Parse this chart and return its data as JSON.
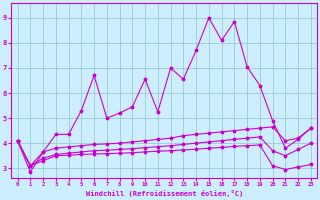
{
  "xlabel": "Windchill (Refroidissement éolien,°C)",
  "bg_color": "#cceeff",
  "line_color": "#cc00cc",
  "grid_color": "#99cccc",
  "xlim": [
    -0.5,
    23.5
  ],
  "ylim": [
    2.6,
    9.6
  ],
  "yticks": [
    3,
    4,
    5,
    6,
    7,
    8,
    9
  ],
  "xticks": [
    0,
    1,
    2,
    3,
    4,
    5,
    6,
    7,
    8,
    9,
    10,
    11,
    12,
    13,
    14,
    15,
    16,
    17,
    18,
    19,
    20,
    21,
    22,
    23
  ],
  "line1_y": [
    4.1,
    2.85,
    3.65,
    4.35,
    4.35,
    5.3,
    6.7,
    5.0,
    5.2,
    5.45,
    6.55,
    5.25,
    7.0,
    6.55,
    7.7,
    9.0,
    8.1,
    8.85,
    7.05,
    6.3,
    4.9,
    3.8,
    4.15,
    4.6
  ],
  "line2_y": [
    4.1,
    3.1,
    3.65,
    3.8,
    3.85,
    3.9,
    3.95,
    3.97,
    4.0,
    4.05,
    4.1,
    4.15,
    4.2,
    4.3,
    4.35,
    4.4,
    4.45,
    4.5,
    4.55,
    4.6,
    4.65,
    4.1,
    4.2,
    4.6
  ],
  "line3_y": [
    4.1,
    3.1,
    3.4,
    3.55,
    3.6,
    3.65,
    3.7,
    3.72,
    3.75,
    3.78,
    3.82,
    3.86,
    3.9,
    3.95,
    4.0,
    4.05,
    4.1,
    4.15,
    4.2,
    4.25,
    3.7,
    3.5,
    3.75,
    4.0
  ],
  "line4_y": [
    4.1,
    3.1,
    3.3,
    3.5,
    3.52,
    3.55,
    3.57,
    3.58,
    3.6,
    3.62,
    3.65,
    3.68,
    3.7,
    3.73,
    3.76,
    3.8,
    3.83,
    3.87,
    3.9,
    3.93,
    3.1,
    2.95,
    3.05,
    3.15
  ]
}
